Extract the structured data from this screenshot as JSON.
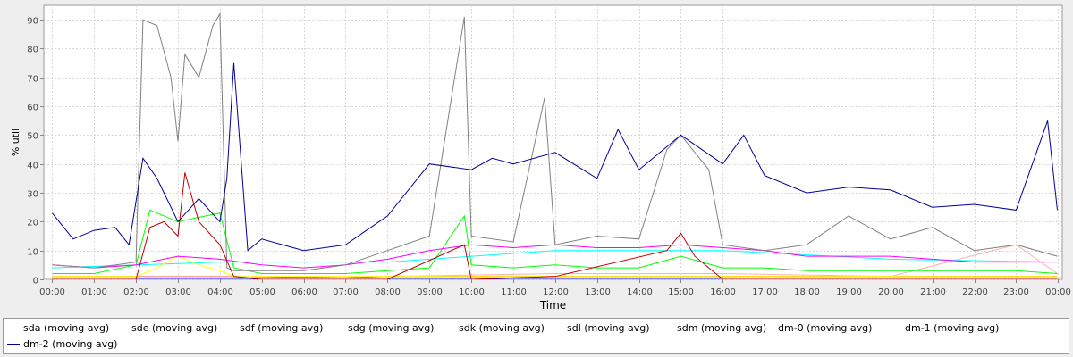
{
  "chart_data": {
    "type": "line",
    "title": "",
    "xlabel": "Time",
    "ylabel": "% util",
    "ylim": [
      0,
      95
    ],
    "yticks": [
      0,
      10,
      20,
      30,
      40,
      50,
      60,
      70,
      80,
      90
    ],
    "xlim_hours": [
      -0.2,
      24.1
    ],
    "xticks": [
      "00:00",
      "01:00",
      "02:00",
      "03:00",
      "04:00",
      "05:00",
      "06:00",
      "07:00",
      "08:00",
      "09:00",
      "10:00",
      "11:00",
      "12:00",
      "13:00",
      "14:00",
      "15:00",
      "16:00",
      "17:00",
      "18:00",
      "19:00",
      "20:00",
      "21:00",
      "22:00",
      "23:00",
      "00:00"
    ],
    "grid": true,
    "legend_position": "bottom",
    "series": [
      {
        "name": "sda (moving avg)",
        "color": "#ff0000",
        "x": [
          "00:00",
          "02:00",
          "04:20",
          "07:00",
          "08:00",
          "10:00",
          "12:00",
          "14:00",
          "16:00",
          "18:00",
          "20:00",
          "22:00",
          "23:59"
        ],
        "values": [
          1,
          1,
          1,
          0.5,
          1,
          1,
          1,
          1,
          1,
          1,
          1,
          1,
          1
        ]
      },
      {
        "name": "sde (moving avg)",
        "color": "#0000ff",
        "x": [
          "00:00",
          "02:00",
          "04:20",
          "07:00",
          "08:00",
          "10:00",
          "12:00",
          "14:00",
          "16:00",
          "18:00",
          "20:00",
          "22:00",
          "23:59"
        ],
        "values": [
          0,
          0,
          0,
          0,
          0,
          0,
          0,
          0,
          0,
          0,
          0,
          0,
          0
        ]
      },
      {
        "name": "sdf (moving avg)",
        "color": "#00ff00",
        "x": [
          "00:00",
          "01:00",
          "02:00",
          "02:20",
          "03:00",
          "03:40",
          "04:00",
          "04:20",
          "05:00",
          "06:00",
          "07:00",
          "08:00",
          "09:00",
          "09:50",
          "10:00",
          "11:00",
          "12:00",
          "13:00",
          "14:00",
          "15:00",
          "16:00",
          "17:00",
          "18:00",
          "19:00",
          "20:00",
          "21:00",
          "22:00",
          "23:00",
          "23:59"
        ],
        "values": [
          2,
          2,
          5,
          24,
          20,
          22,
          23,
          4,
          2,
          2,
          2,
          3,
          4,
          22,
          5,
          4,
          5,
          4,
          4,
          8,
          4,
          4,
          3,
          3,
          3,
          3,
          3,
          3,
          2
        ]
      },
      {
        "name": "sdg (moving avg)",
        "color": "#ffff00",
        "x": [
          "00:00",
          "02:00",
          "02:30",
          "03:00",
          "03:30",
          "04:00",
          "04:20",
          "06:00",
          "10:00",
          "14:00",
          "18:00",
          "22:00",
          "23:59"
        ],
        "values": [
          1,
          1,
          4,
          8,
          5,
          3,
          1,
          1,
          1,
          1,
          1,
          1,
          1
        ]
      },
      {
        "name": "sdk (moving avg)",
        "color": "#ff00ff",
        "x": [
          "00:00",
          "01:00",
          "02:00",
          "03:00",
          "04:00",
          "05:00",
          "06:00",
          "07:00",
          "08:00",
          "09:00",
          "10:00",
          "11:00",
          "12:00",
          "13:00",
          "14:00",
          "15:00",
          "16:00",
          "17:00",
          "18:00",
          "19:00",
          "20:00",
          "21:00",
          "22:00",
          "23:00",
          "23:59"
        ],
        "values": [
          5,
          4,
          5,
          8,
          7,
          5,
          4,
          5,
          7,
          10,
          12,
          11,
          12,
          11,
          11,
          12,
          11,
          10,
          8,
          8,
          8,
          7,
          6,
          6,
          6
        ]
      },
      {
        "name": "sdl (moving avg)",
        "color": "#00ffff",
        "x": [
          "00:00",
          "04:00",
          "08:00",
          "12:00",
          "16:00",
          "20:00",
          "23:59"
        ],
        "values": [
          4,
          6,
          6,
          10,
          10,
          7,
          6
        ]
      },
      {
        "name": "sdm (moving avg)",
        "color": "#ffafaf",
        "x": [
          "00:00",
          "04:00",
          "08:00",
          "12:00",
          "16:00",
          "20:00",
          "23:00",
          "23:59"
        ],
        "values": [
          1,
          1,
          1,
          2,
          2,
          1,
          12,
          2
        ]
      },
      {
        "name": "dm-0 (moving avg)",
        "color": "#808080",
        "x": [
          "00:00",
          "01:00",
          "02:00",
          "02:10",
          "02:30",
          "02:50",
          "03:00",
          "03:10",
          "03:30",
          "03:50",
          "04:00",
          "04:10",
          "04:20",
          "05:00",
          "06:00",
          "07:00",
          "08:00",
          "09:00",
          "09:50",
          "10:00",
          "11:00",
          "11:45",
          "12:00",
          "13:00",
          "14:00",
          "14:40",
          "15:00",
          "15:40",
          "16:00",
          "17:00",
          "18:00",
          "19:00",
          "20:00",
          "21:00",
          "22:00",
          "23:00",
          "23:59"
        ],
        "values": [
          5,
          4,
          6,
          90,
          88,
          70,
          48,
          78,
          70,
          88,
          92,
          4,
          3,
          3,
          3,
          5,
          10,
          15,
          91,
          15,
          13,
          63,
          12,
          15,
          14,
          45,
          50,
          38,
          12,
          10,
          12,
          22,
          14,
          18,
          10,
          12,
          8
        ]
      },
      {
        "name": "dm-1 (moving avg)",
        "color": "#c00000",
        "x": [
          "00:00",
          "01:00",
          "02:00",
          "02:20",
          "02:40",
          "03:00",
          "03:10",
          "03:30",
          "04:00",
          "04:20",
          "05:00",
          "08:00",
          "09:50",
          "10:00",
          "12:00",
          "14:40",
          "15:00",
          "15:20",
          "16:00",
          "20:00",
          "23:59"
        ],
        "values": [
          0,
          0,
          0,
          18,
          20,
          15,
          37,
          20,
          12,
          1,
          0,
          0,
          12,
          0,
          1,
          10,
          16,
          8,
          0,
          0,
          0
        ]
      },
      {
        "name": "dm-2 (moving avg)",
        "color": "#000099",
        "x": [
          "00:00",
          "00:30",
          "01:00",
          "01:30",
          "01:50",
          "02:10",
          "02:30",
          "03:00",
          "03:30",
          "04:00",
          "04:10",
          "04:20",
          "04:40",
          "05:00",
          "06:00",
          "07:00",
          "08:00",
          "09:00",
          "10:00",
          "10:30",
          "11:00",
          "12:00",
          "13:00",
          "13:30",
          "14:00",
          "15:00",
          "16:00",
          "16:30",
          "17:00",
          "18:00",
          "19:00",
          "20:00",
          "21:00",
          "22:00",
          "23:00",
          "23:45",
          "23:59"
        ],
        "values": [
          23,
          14,
          17,
          18,
          12,
          42,
          35,
          20,
          28,
          20,
          35,
          75,
          10,
          14,
          10,
          12,
          22,
          40,
          38,
          42,
          40,
          44,
          35,
          52,
          38,
          50,
          40,
          50,
          36,
          30,
          32,
          31,
          25,
          26,
          24,
          55,
          24
        ]
      }
    ]
  },
  "legend": [
    {
      "label": "sda (moving avg)",
      "color": "#ff0000"
    },
    {
      "label": "sde (moving avg)",
      "color": "#0000ff"
    },
    {
      "label": "sdf (moving avg)",
      "color": "#00ff00"
    },
    {
      "label": "sdg (moving avg)",
      "color": "#ffff00"
    },
    {
      "label": "sdk (moving avg)",
      "color": "#ff00ff"
    },
    {
      "label": "sdl (moving avg)",
      "color": "#00ffff"
    },
    {
      "label": "sdm (moving avg)",
      "color": "#ffafaf"
    },
    {
      "label": "dm-0 (moving avg)",
      "color": "#808080"
    },
    {
      "label": "dm-1 (moving avg)",
      "color": "#c00000"
    },
    {
      "label": "dm-2 (moving avg)",
      "color": "#000099"
    }
  ]
}
